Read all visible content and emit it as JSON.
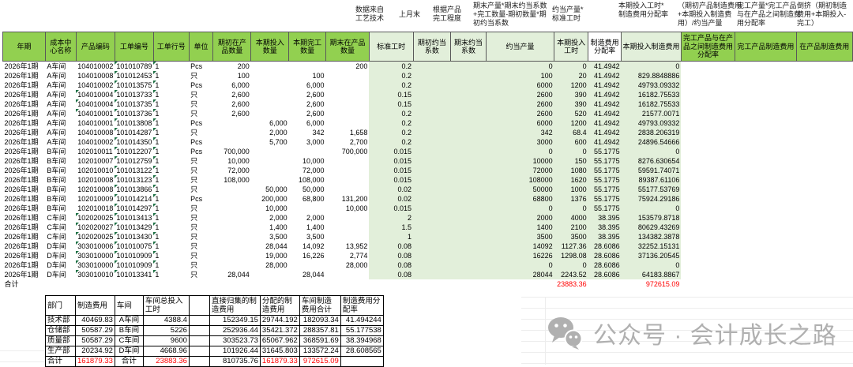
{
  "notes": [
    "数据来自工艺技术",
    "上月末",
    "根据产品完工程度",
    "期末产量*期末约当系数+完工数量-期初数量*期初约当系数",
    "约当产量*标准工时",
    "本期投入工时*制造费用分配率",
    "（期初产品制造费用+本期投入制造费用）/约当产量",
    "完工产量*完工产品与在产品之间制造费用分配率",
    "倒挤（期初制造费用+本期投入-完工）"
  ],
  "main_table": {
    "headers": [
      "年期",
      "成本中心名称",
      "产品编码",
      "工单编号",
      "工单行号",
      "单位",
      "期初在产品数量",
      "本期投入数量",
      "本期完工数量",
      "期末在产品数量",
      "标准工时",
      "期初约当系数",
      "期末约当系数",
      "约当产量",
      "本期投入工时",
      "制造费用分配率",
      "本期投入制造费用",
      "完工产品与在产品之间制造费用分配率",
      "完工产品制造费用",
      "在产品制造费用"
    ],
    "rows": [
      [
        "2026年1期",
        "A车间",
        "104010002",
        "101010789",
        "1",
        "Pcs",
        "200",
        "",
        "",
        "200",
        "0.2",
        "",
        "",
        "0",
        "0",
        "41.4942",
        "0",
        "",
        "",
        ""
      ],
      [
        "2026年1期",
        "A车间",
        "104010008",
        "101012453",
        "1",
        "只",
        "100",
        "",
        "100",
        "",
        "0.2",
        "",
        "",
        "100",
        "20",
        "41.4942",
        "829.8848886",
        "",
        "",
        ""
      ],
      [
        "2026年1期",
        "A车间",
        "104010002",
        "101013575",
        "1",
        "Pcs",
        "6,000",
        "",
        "6,000",
        "",
        "0.2",
        "",
        "",
        "6000",
        "1200",
        "41.4942",
        "49793.09332",
        "",
        "",
        ""
      ],
      [
        "2026年1期",
        "A车间",
        "104010004",
        "101013733",
        "1",
        "只",
        "2,600",
        "",
        "2,600",
        "",
        "0.15",
        "",
        "",
        "2600",
        "390",
        "41.4942",
        "16182.75533",
        "",
        "",
        ""
      ],
      [
        "2026年1期",
        "A车间",
        "104010004",
        "101013735",
        "1",
        "只",
        "2,600",
        "",
        "2,600",
        "",
        "0.15",
        "",
        "",
        "2600",
        "390",
        "41.4942",
        "16182.75533",
        "",
        "",
        ""
      ],
      [
        "2026年1期",
        "A车间",
        "104010001",
        "101013736",
        "1",
        "只",
        "2,600",
        "",
        "2,600",
        "",
        "0.2",
        "",
        "",
        "2600",
        "520",
        "41.4942",
        "21577.0071",
        "",
        "",
        ""
      ],
      [
        "2026年1期",
        "A车间",
        "104010001",
        "101013808",
        "1",
        "Pcs",
        "",
        "6,000",
        "6,000",
        "",
        "0.2",
        "",
        "",
        "6000",
        "1200",
        "41.4942",
        "49793.09332",
        "",
        "",
        ""
      ],
      [
        "2026年1期",
        "A车间",
        "104010008",
        "101014287",
        "1",
        "只",
        "",
        "2,000",
        "342",
        "1,658",
        "0.2",
        "",
        "",
        "342",
        "68.4",
        "41.4942",
        "2838.206319",
        "",
        "",
        ""
      ],
      [
        "2026年1期",
        "A车间",
        "104010002",
        "101014350",
        "1",
        "Pcs",
        "",
        "5,700",
        "3,000",
        "2,700",
        "0.2",
        "",
        "",
        "3000",
        "600",
        "41.4942",
        "24896.54666",
        "",
        "",
        ""
      ],
      [
        "2026年1期",
        "B车间",
        "102010011",
        "101012207",
        "1",
        "Pcs",
        "700,000",
        "",
        "",
        "700,000",
        "0.015",
        "",
        "",
        "0",
        "0",
        "55.1775",
        "0",
        "",
        "",
        ""
      ],
      [
        "2026年1期",
        "B车间",
        "102010007",
        "101012759",
        "1",
        "只",
        "10,000",
        "",
        "10,000",
        "",
        "0.015",
        "",
        "",
        "10000",
        "150",
        "55.1775",
        "8276.630654",
        "",
        "",
        ""
      ],
      [
        "2026年1期",
        "B车间",
        "102010010",
        "101013122",
        "1",
        "只",
        "72,000",
        "",
        "72,000",
        "",
        "0.015",
        "",
        "",
        "72000",
        "1080",
        "55.1775",
        "59591.74071",
        "",
        "",
        ""
      ],
      [
        "2026年1期",
        "B车间",
        "102010008",
        "101013123",
        "1",
        "只",
        "108,000",
        "",
        "108,000",
        "",
        "0.015",
        "",
        "",
        "108000",
        "1620",
        "55.1775",
        "89387.61106",
        "",
        "",
        ""
      ],
      [
        "2026年1期",
        "B车间",
        "102010008",
        "101013866",
        "1",
        "只",
        "",
        "50,000",
        "50,000",
        "",
        "0.02",
        "",
        "",
        "50000",
        "1000",
        "55.1775",
        "55177.53769",
        "",
        "",
        ""
      ],
      [
        "2026年1期",
        "B车间",
        "102010009",
        "101014214",
        "1",
        "Pcs",
        "",
        "200,000",
        "68,800",
        "131,200",
        "0.02",
        "",
        "",
        "68800",
        "1376",
        "55.1775",
        "75924.29186",
        "",
        "",
        ""
      ],
      [
        "2026年1期",
        "B车间",
        "102010018",
        "101014297",
        "1",
        "只",
        "",
        "10,000",
        "",
        "10,000",
        "0.015",
        "",
        "",
        "0",
        "0",
        "55.1775",
        "0",
        "",
        "",
        ""
      ],
      [
        "2026年1期",
        "C车间",
        "102020025",
        "101013413",
        "1",
        "只",
        "",
        "2,000",
        "2,000",
        "",
        "2",
        "",
        "",
        "2000",
        "4000",
        "38.395",
        "153579.8718",
        "",
        "",
        ""
      ],
      [
        "2026年1期",
        "C车间",
        "102020027",
        "101013429",
        "1",
        "只",
        "",
        "1,400",
        "1,400",
        "",
        "1.5",
        "",
        "",
        "1400",
        "2100",
        "38.395",
        "80629.43269",
        "",
        "",
        ""
      ],
      [
        "2026年1期",
        "C车间",
        "102020025",
        "101013430",
        "1",
        "只",
        "",
        "3,500",
        "3,500",
        "",
        "1",
        "",
        "",
        "3500",
        "3500",
        "38.395",
        "134382.3878",
        "",
        "",
        ""
      ],
      [
        "2026年1期",
        "D车间",
        "303010006",
        "101010075",
        "1",
        "只",
        "",
        "28,044",
        "14,092",
        "13,952",
        "0.08",
        "",
        "",
        "14092",
        "1127.36",
        "28.6086",
        "32252.15131",
        "",
        "",
        ""
      ],
      [
        "2026年1期",
        "D车间",
        "303010000",
        "101010909",
        "1",
        "只",
        "",
        "19,000",
        "16,226",
        "2,774",
        "0.08",
        "",
        "",
        "16226",
        "1298.08",
        "28.6086",
        "37136.20545",
        "",
        "",
        ""
      ],
      [
        "2026年1期",
        "D车间",
        "303010000",
        "101010909",
        "1",
        "只",
        "",
        "28,000",
        "",
        "28,000",
        "0.08",
        "",
        "",
        "0",
        "0",
        "28.6086",
        "0",
        "",
        "",
        ""
      ],
      [
        "2026年1期",
        "D车间",
        "303010010",
        "101013341",
        "1",
        "只",
        "28,044",
        "",
        "28,044",
        "",
        "0.08",
        "",
        "",
        "28044",
        "2243.52",
        "28.6086",
        "64183.8867",
        "",
        "",
        ""
      ]
    ],
    "product_tri_rows": [
      3,
      4,
      5,
      16,
      17,
      18,
      19,
      20,
      21,
      22
    ],
    "total_row": {
      "label": "合计",
      "input_hours": "23883.36",
      "input_cost": "972615.09"
    }
  },
  "bottom_table": {
    "headers": [
      "部门",
      "制造费用",
      "车间",
      "车间总投入工时",
      "",
      "直接归集的制造费用",
      "分配的制造费用",
      "车间制造费用合计",
      "制造费用分配率"
    ],
    "rows": [
      [
        "技术部",
        "40469.83",
        "A车间",
        "4388.4",
        "",
        "152349.15",
        "29744.192",
        "182093.34",
        "41.494244"
      ],
      [
        "仓储部",
        "50587.29",
        "B车间",
        "5226",
        "",
        "252936.44",
        "35421.372",
        "288357.81",
        "55.177538"
      ],
      [
        "质量部",
        "50587.29",
        "C车间",
        "9600",
        "",
        "303523.73",
        "65067.962",
        "368591.69",
        "38.394968"
      ],
      [
        "生产部",
        "20234.92",
        "D车间",
        "4668.96",
        "",
        "101926.44",
        "31645.803",
        "133572.24",
        "28.608565"
      ]
    ],
    "total_row": [
      "合计",
      "161879.33",
      "合计",
      "23883.36",
      "",
      "810735.76",
      "161879.33",
      "972615.09",
      ""
    ]
  },
  "watermark": {
    "label": "公众号 · 会计成长之路",
    "icon": "wechat-icon"
  },
  "colors": {
    "header_green": "#92d050",
    "pale_green": "#e2efda",
    "total_red": "#ff0000",
    "border_dark": "#595959",
    "watermark_gray": "#b0b0b0"
  }
}
